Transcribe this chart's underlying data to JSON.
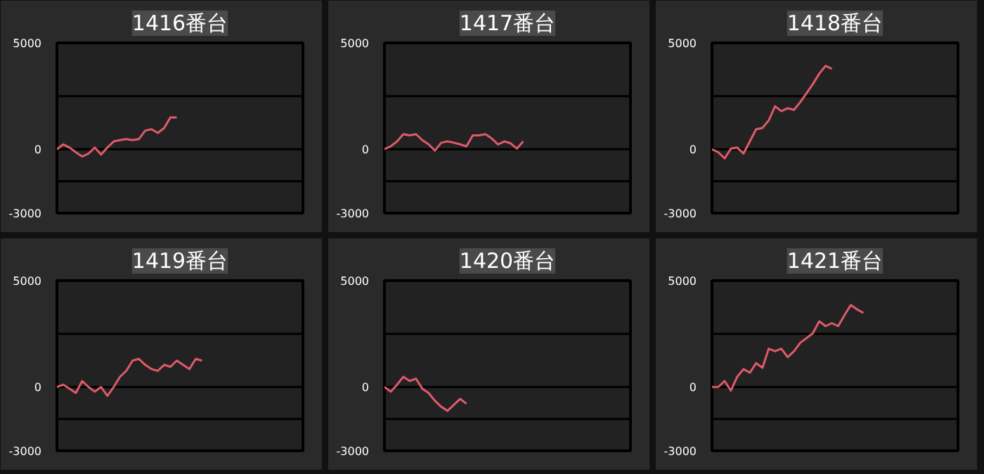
{
  "chart_data": [
    {
      "type": "line",
      "title": "1416番台",
      "categories": [
        null,
        null,
        null,
        null,
        null,
        null,
        null,
        null,
        null,
        null,
        null,
        null,
        null,
        null,
        null,
        null,
        null,
        null,
        null,
        null,
        null,
        null,
        null,
        null,
        null,
        null,
        null,
        null,
        null,
        null,
        null,
        null,
        null,
        null,
        null,
        null,
        null,
        null,
        null,
        null
      ],
      "series": [
        {
          "color": "#e05a6a",
          "values": [
            0,
            230,
            80,
            -140,
            -340,
            -200,
            80,
            -250,
            80,
            370,
            430,
            480,
            430,
            480,
            880,
            940,
            770,
            1000,
            1500,
            1500,
            null,
            null,
            null,
            null,
            null,
            null,
            null,
            null,
            null,
            null,
            null,
            null,
            null,
            null,
            null,
            null,
            null,
            null,
            null,
            null
          ]
        }
      ],
      "ylim": [
        -3000,
        5000
      ],
      "yticks": [
        5000,
        0,
        -3000
      ],
      "ref_lines": [
        {
          "axis": "y",
          "value": 2500
        },
        {
          "axis": "y",
          "value": -1500
        }
      ],
      "grid": "y",
      "tick_labels": "y"
    },
    {
      "type": "line",
      "title": "1417番台",
      "categories": [
        null,
        null,
        null,
        null,
        null,
        null,
        null,
        null,
        null,
        null,
        null,
        null,
        null,
        null,
        null,
        null,
        null,
        null,
        null,
        null,
        null,
        null,
        null,
        null,
        null,
        null,
        null,
        null,
        null,
        null,
        null,
        null,
        null,
        null,
        null,
        null,
        null,
        null,
        null,
        null
      ],
      "series": [
        {
          "color": "#e05a6a",
          "values": [
            0,
            140,
            370,
            710,
            650,
            710,
            430,
            230,
            -60,
            310,
            370,
            310,
            230,
            140,
            650,
            650,
            710,
            510,
            230,
            370,
            280,
            30,
            370,
            null,
            null,
            null,
            null,
            null,
            null,
            null,
            null,
            null,
            null,
            null,
            null,
            null,
            null,
            null,
            null,
            null
          ]
        }
      ],
      "ylim": [
        -3000,
        5000
      ],
      "yticks": [
        5000,
        0,
        -3000
      ],
      "ref_lines": [
        {
          "axis": "y",
          "value": 2500
        },
        {
          "axis": "y",
          "value": -1500
        }
      ],
      "grid": "y",
      "tick_labels": "y"
    },
    {
      "type": "line",
      "title": "1418番台",
      "categories": [
        null,
        null,
        null,
        null,
        null,
        null,
        null,
        null,
        null,
        null,
        null,
        null,
        null,
        null,
        null,
        null,
        null,
        null,
        null,
        null,
        null,
        null,
        null,
        null,
        null,
        null,
        null,
        null,
        null,
        null,
        null,
        null,
        null,
        null,
        null,
        null,
        null,
        null,
        null,
        null
      ],
      "series": [
        {
          "color": "#e05a6a",
          "values": [
            0,
            -140,
            -430,
            30,
            80,
            -200,
            370,
            940,
            1000,
            1360,
            2020,
            1790,
            1930,
            1850,
            2220,
            2640,
            3070,
            3550,
            3920,
            3780,
            null,
            null,
            null,
            null,
            null,
            null,
            null,
            null,
            null,
            null,
            null,
            null,
            null,
            null,
            null,
            null,
            null,
            null,
            null,
            null
          ]
        }
      ],
      "ylim": [
        -3000,
        5000
      ],
      "yticks": [
        5000,
        0,
        -3000
      ],
      "ref_lines": [
        {
          "axis": "y",
          "value": 2500
        },
        {
          "axis": "y",
          "value": -1500
        }
      ],
      "grid": "y",
      "tick_labels": "y"
    },
    {
      "type": "line",
      "title": "1419番台",
      "categories": [
        null,
        null,
        null,
        null,
        null,
        null,
        null,
        null,
        null,
        null,
        null,
        null,
        null,
        null,
        null,
        null,
        null,
        null,
        null,
        null,
        null,
        null,
        null,
        null,
        null,
        null,
        null,
        null,
        null,
        null,
        null,
        null,
        null,
        null,
        null,
        null,
        null,
        null,
        null,
        null
      ],
      "series": [
        {
          "color": "#e05a6a",
          "values": [
            0,
            110,
            -80,
            -280,
            280,
            0,
            -220,
            0,
            -420,
            0,
            480,
            760,
            1240,
            1320,
            1040,
            840,
            760,
            1040,
            950,
            1240,
            1040,
            840,
            1320,
            1240,
            null,
            null,
            null,
            null,
            null,
            null,
            null,
            null,
            null,
            null,
            null,
            null,
            null,
            null,
            null,
            null
          ]
        }
      ],
      "ylim": [
        -3000,
        5000
      ],
      "yticks": [
        5000,
        0,
        -3000
      ],
      "ref_lines": [
        {
          "axis": "y",
          "value": 2500
        },
        {
          "axis": "y",
          "value": -1500
        }
      ],
      "grid": "y",
      "tick_labels": "y"
    },
    {
      "type": "line",
      "title": "1420番台",
      "categories": [
        null,
        null,
        null,
        null,
        null,
        null,
        null,
        null,
        null,
        null,
        null,
        null,
        null,
        null,
        null,
        null,
        null,
        null,
        null,
        null,
        null,
        null,
        null,
        null,
        null,
        null,
        null,
        null,
        null,
        null,
        null,
        null,
        null,
        null,
        null,
        null,
        null,
        null,
        null,
        null
      ],
      "series": [
        {
          "color": "#e05a6a",
          "values": [
            0,
            -220,
            110,
            480,
            280,
            390,
            -80,
            -280,
            -650,
            -930,
            -1120,
            -840,
            -560,
            -790,
            null,
            null,
            null,
            null,
            null,
            null,
            null,
            null,
            null,
            null,
            null,
            null,
            null,
            null,
            null,
            null,
            null,
            null,
            null,
            null,
            null,
            null,
            null,
            null,
            null,
            null
          ]
        }
      ],
      "ylim": [
        -3000,
        5000
      ],
      "yticks": [
        5000,
        0,
        -3000
      ],
      "ref_lines": [
        {
          "axis": "y",
          "value": 2500
        },
        {
          "axis": "y",
          "value": -1500
        }
      ],
      "grid": "y",
      "tick_labels": "y"
    },
    {
      "type": "line",
      "title": "1421番台",
      "categories": [
        null,
        null,
        null,
        null,
        null,
        null,
        null,
        null,
        null,
        null,
        null,
        null,
        null,
        null,
        null,
        null,
        null,
        null,
        null,
        null,
        null,
        null,
        null,
        null,
        null,
        null,
        null,
        null,
        null,
        null,
        null,
        null,
        null,
        null,
        null,
        null,
        null,
        null,
        null,
        null
      ],
      "series": [
        {
          "color": "#e05a6a",
          "values": [
            0,
            0,
            280,
            -170,
            480,
            840,
            670,
            1120,
            900,
            1800,
            1680,
            1800,
            1400,
            1680,
            2080,
            2300,
            2530,
            3090,
            2860,
            3000,
            2860,
            3370,
            3850,
            3650,
            3480,
            null,
            null,
            null,
            null,
            null,
            null,
            null,
            null,
            null,
            null,
            null,
            null,
            null,
            null,
            null
          ]
        }
      ],
      "ylim": [
        -3000,
        5000
      ],
      "yticks": [
        5000,
        0,
        -3000
      ],
      "ref_lines": [
        {
          "axis": "y",
          "value": 2500
        },
        {
          "axis": "y",
          "value": -1500
        }
      ],
      "grid": "y",
      "tick_labels": "y"
    }
  ]
}
